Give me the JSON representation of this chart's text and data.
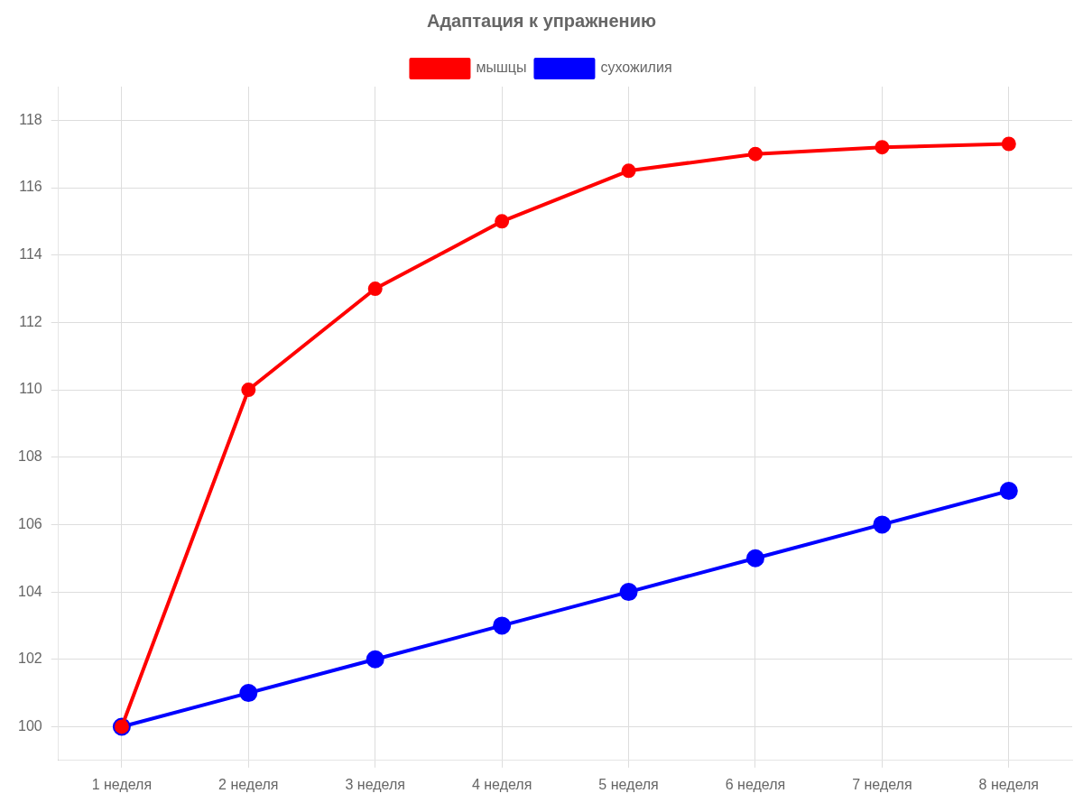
{
  "chart_data": {
    "type": "line",
    "title": "Адаптация к упражнению",
    "categories": [
      "1 неделя",
      "2 неделя",
      "3 неделя",
      "4 неделя",
      "5 неделя",
      "6 неделя",
      "7 неделя",
      "8 неделя"
    ],
    "series": [
      {
        "name": "мышцы",
        "color": "#ff0000",
        "values": [
          100,
          110,
          113,
          115,
          116.5,
          117,
          117.2,
          117.3
        ]
      },
      {
        "name": "сухожилия",
        "color": "#0000ff",
        "values": [
          100,
          101,
          102,
          103,
          104,
          105,
          106,
          107
        ]
      }
    ],
    "ylim": [
      99,
      119
    ],
    "yticks": [
      100,
      102,
      104,
      106,
      108,
      110,
      112,
      114,
      116,
      118
    ],
    "grid": true,
    "legend": "top",
    "marker": "circle",
    "line_style": "solid"
  }
}
